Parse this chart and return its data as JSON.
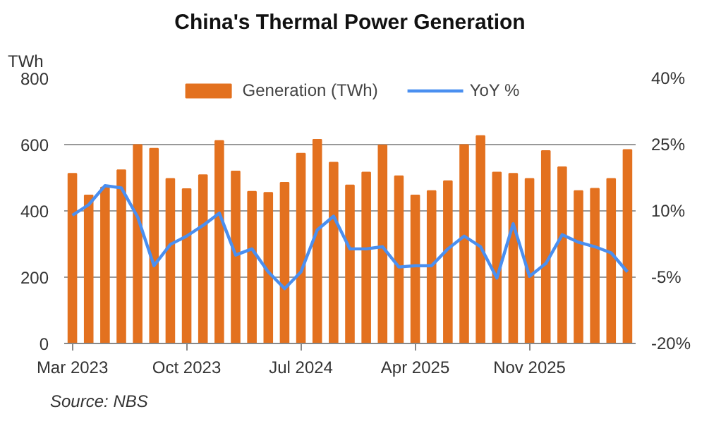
{
  "chart_data": {
    "type": "bar",
    "title": "China's Thermal Power Generation",
    "ylabel": "TWh",
    "annotations": [
      "Source: NBS"
    ],
    "categories": [
      "Mar 2023",
      null,
      null,
      null,
      null,
      null,
      null,
      "Oct 2023",
      null,
      null,
      null,
      null,
      null,
      null,
      "Jul 2024",
      null,
      null,
      null,
      null,
      null,
      null,
      "Apr 2025",
      null,
      null,
      null,
      null,
      null,
      null,
      "Nov 2025",
      null,
      null,
      null,
      null,
      null,
      null
    ],
    "series": [
      {
        "name": "Generation (TWh)",
        "color": "#e3711f",
        "values": [
          512,
          447,
          471,
          523,
          599,
          588,
          497,
          466,
          508,
          611,
          519,
          458,
          455,
          485,
          573,
          615,
          546,
          477,
          516,
          598,
          505,
          447,
          460,
          490,
          599,
          626,
          516,
          512,
          497,
          581,
          532,
          460,
          467,
          497,
          584
        ]
      },
      {
        "name": "YoY %",
        "type": "line",
        "axis": "y2",
        "color": "#4a8ff0",
        "values": [
          9.0,
          11.4,
          15.7,
          15.2,
          8.6,
          -2.4,
          2.4,
          4.3,
          6.7,
          9.5,
          0.0,
          1.4,
          -3.8,
          -7.6,
          -3.8,
          5.7,
          8.8,
          1.4,
          1.4,
          1.9,
          -2.7,
          -2.4,
          -2.4,
          1.4,
          4.3,
          1.9,
          -5.2,
          7.1,
          -4.8,
          -1.9,
          4.6,
          2.9,
          1.9,
          0.5,
          -3.8
        ]
      }
    ],
    "ylim": [
      0,
      800
    ],
    "yticks": [
      0,
      200,
      400,
      600,
      800
    ],
    "y2lim": [
      -20,
      40
    ],
    "y2ticks": [
      {
        "value": -20,
        "label": "-20%"
      },
      {
        "value": -5,
        "label": "-5%"
      },
      {
        "value": 10,
        "label": "10%"
      },
      {
        "value": 25,
        "label": "25%"
      },
      {
        "value": 40,
        "label": "40%"
      }
    ],
    "grid": "y",
    "legend": "top"
  }
}
